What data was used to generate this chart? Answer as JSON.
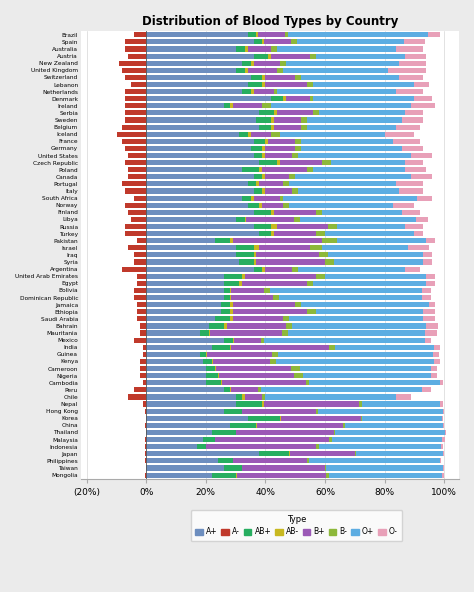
{
  "title": "Distribution of Blood Types by Country",
  "xlabel": "Type",
  "countries": [
    "Brazil",
    "Spain",
    "Australia",
    "Austria",
    "New Zealand",
    "United Kingdom",
    "Switzerland",
    "Lebanon",
    "Netherlands",
    "Denmark",
    "Ireland",
    "Serbia",
    "Sweden",
    "Belgium",
    "Iceland",
    "France",
    "Germany",
    "United States",
    "Czech Republic",
    "Poland",
    "Canada",
    "Portugal",
    "Italy",
    "South Africa",
    "Norway",
    "Finland",
    "Libya",
    "Russia",
    "Turkey",
    "Pakistan",
    "Israel",
    "Iraq",
    "Syria",
    "Argentina",
    "United Arab Emirates",
    "Egypt",
    "Bolivia",
    "Dominican Republic",
    "Jamaica",
    "Ethiopia",
    "Saudi Arabia",
    "Bahrain",
    "Mauritania",
    "Mexico",
    "India",
    "Guinea",
    "Kenya",
    "Cameroon",
    "Nigeria",
    "Cambodia",
    "Peru",
    "Chile",
    "Nepal",
    "Hong Kong",
    "Korea",
    "China",
    "Thailand",
    "Malaysia",
    "Indonesia",
    "Japan",
    "Philippines",
    "Taiwan",
    "Mongolia"
  ],
  "blood_types": [
    "A+",
    "A-",
    "AB+",
    "AB-",
    "B+",
    "B-",
    "O+",
    "O-"
  ],
  "colors": {
    "A+": "#6d8ebf",
    "A-": "#c0392b",
    "AB+": "#27ae60",
    "AB-": "#c8b820",
    "B+": "#9b59b6",
    "B-": "#8db83a",
    "O+": "#5dade2",
    "O-": "#e8a0b8"
  },
  "data": {
    "Brazil": {
      "A+": 34,
      "A-": 4,
      "AB+": 3,
      "AB-": 0.5,
      "B+": 9,
      "B-": 1,
      "O+": 47,
      "O-": 4
    },
    "Spain": {
      "A+": 36,
      "A-": 7,
      "AB+": 3,
      "AB-": 0.5,
      "B+": 9,
      "B-": 2,
      "O+": 36,
      "O-": 7
    },
    "Australia": {
      "A+": 30,
      "A-": 7,
      "AB+": 3,
      "AB-": 1,
      "B+": 8,
      "B-": 2,
      "O+": 40,
      "O-": 9
    },
    "Austria": {
      "A+": 36,
      "A-": 6,
      "AB+": 5,
      "AB-": 1,
      "B+": 13,
      "B-": 2,
      "O+": 30,
      "O-": 7
    },
    "New Zealand": {
      "A+": 32,
      "A-": 9,
      "AB+": 3,
      "AB-": 1,
      "B+": 9,
      "B-": 2,
      "O+": 38,
      "O-": 9
    },
    "United Kingdom": {
      "A+": 30,
      "A-": 8,
      "AB+": 3,
      "AB-": 1,
      "B+": 10,
      "B-": 2,
      "O+": 35,
      "O-": 13
    },
    "Switzerland": {
      "A+": 35,
      "A-": 7,
      "AB+": 4,
      "AB-": 1,
      "B+": 10,
      "B-": 2,
      "O+": 33,
      "O-": 8
    },
    "Lebanon": {
      "A+": 34,
      "A-": 5,
      "AB+": 5,
      "AB-": 1,
      "B+": 14,
      "B-": 2,
      "O+": 34,
      "O-": 5
    },
    "Netherlands": {
      "A+": 32,
      "A-": 7,
      "AB+": 3,
      "AB-": 1,
      "B+": 7,
      "B-": 1,
      "O+": 40,
      "O-": 9
    },
    "Denmark": {
      "A+": 42,
      "A-": 7,
      "AB+": 4,
      "AB-": 1,
      "B+": 8,
      "B-": 1,
      "O+": 34,
      "O-": 6
    },
    "Ireland": {
      "A+": 26,
      "A-": 7,
      "AB+": 2,
      "AB-": 1,
      "B+": 10,
      "B-": 3,
      "O+": 47,
      "O-": 8
    },
    "Serbia": {
      "A+": 38,
      "A-": 7,
      "AB+": 5,
      "AB-": 1,
      "B+": 12,
      "B-": 2,
      "O+": 29,
      "O-": 6
    },
    "Sweden": {
      "A+": 37,
      "A-": 7,
      "AB+": 5,
      "AB-": 1,
      "B+": 9,
      "B-": 2,
      "O+": 32,
      "O-": 7
    },
    "Belgium": {
      "A+": 38,
      "A-": 8,
      "AB+": 4,
      "AB-": 1,
      "B+": 9,
      "B-": 2,
      "O+": 30,
      "O-": 8
    },
    "Iceland": {
      "A+": 31,
      "A-": 10,
      "AB+": 3,
      "AB-": 1,
      "B+": 7,
      "B-": 3,
      "O+": 35,
      "O-": 10
    },
    "France": {
      "A+": 36,
      "A-": 8,
      "AB+": 4,
      "AB-": 1,
      "B+": 9,
      "B-": 2,
      "O+": 31,
      "O-": 9
    },
    "Germany": {
      "A+": 35,
      "A-": 7,
      "AB+": 4,
      "AB-": 1,
      "B+": 10,
      "B-": 2,
      "O+": 34,
      "O-": 7
    },
    "United States": {
      "A+": 36,
      "A-": 6,
      "AB+": 3,
      "AB-": 1,
      "B+": 9,
      "B-": 2,
      "O+": 38,
      "O-": 7
    },
    "Czech Republic": {
      "A+": 38,
      "A-": 7,
      "AB+": 6,
      "AB-": 1,
      "B+": 14,
      "B-": 3,
      "O+": 25,
      "O-": 6
    },
    "Poland": {
      "A+": 32,
      "A-": 6,
      "AB+": 6,
      "AB-": 1,
      "B+": 15,
      "B-": 2,
      "O+": 31,
      "O-": 7
    },
    "Canada": {
      "A+": 36,
      "A-": 6,
      "AB+": 3,
      "AB-": 1,
      "B+": 8,
      "B-": 2,
      "O+": 39,
      "O-": 7
    },
    "Portugal": {
      "A+": 34,
      "A-": 8,
      "AB+": 3,
      "AB-": 1,
      "B+": 8,
      "B-": 2,
      "O+": 36,
      "O-": 9
    },
    "Italy": {
      "A+": 36,
      "A-": 7,
      "AB+": 3,
      "AB-": 1,
      "B+": 9,
      "B-": 2,
      "O+": 34,
      "O-": 8
    },
    "South Africa": {
      "A+": 32,
      "A-": 4,
      "AB+": 3,
      "AB-": 1,
      "B+": 9,
      "B-": 1,
      "O+": 45,
      "O-": 5
    },
    "Norway": {
      "A+": 34,
      "A-": 7,
      "AB+": 4,
      "AB-": 1,
      "B+": 7,
      "B-": 2,
      "O+": 35,
      "O-": 7
    },
    "Finland": {
      "A+": 36,
      "A-": 6,
      "AB+": 6,
      "AB-": 1,
      "B+": 14,
      "B-": 2,
      "O+": 27,
      "O-": 6
    },
    "Libya": {
      "A+": 30,
      "A-": 5,
      "AB+": 3,
      "AB-": 0.5,
      "B+": 16,
      "B-": 2,
      "O+": 39,
      "O-": 4
    },
    "Russia": {
      "A+": 36,
      "A-": 7,
      "AB+": 6,
      "AB-": 2,
      "B+": 17,
      "B-": 3,
      "O+": 23,
      "O-": 6
    },
    "Turkey": {
      "A+": 38,
      "A-": 7,
      "AB+": 4,
      "AB-": 1,
      "B+": 14,
      "B-": 3,
      "O+": 30,
      "O-": 3
    },
    "Pakistan": {
      "A+": 23,
      "A-": 3,
      "AB+": 5,
      "AB-": 1,
      "B+": 30,
      "B-": 5,
      "O+": 30,
      "O-": 3
    },
    "Israel": {
      "A+": 30,
      "A-": 6,
      "AB+": 6,
      "AB-": 2,
      "B+": 17,
      "B-": 4,
      "O+": 29,
      "O-": 7
    },
    "Iraq": {
      "A+": 30,
      "A-": 4,
      "AB+": 6,
      "AB-": 1,
      "B+": 21,
      "B-": 3,
      "O+": 32,
      "O-": 3
    },
    "Syria": {
      "A+": 31,
      "A-": 4,
      "AB+": 5,
      "AB-": 1,
      "B+": 23,
      "B-": 3,
      "O+": 30,
      "O-": 3
    },
    "Argentina": {
      "A+": 36,
      "A-": 8,
      "AB+": 3,
      "AB-": 1,
      "B+": 9,
      "B-": 2,
      "O+": 36,
      "O-": 5
    },
    "United Arab Emirates": {
      "A+": 26,
      "A-": 3,
      "AB+": 6,
      "AB-": 1,
      "B+": 24,
      "B-": 3,
      "O+": 34,
      "O-": 3
    },
    "Egypt": {
      "A+": 26,
      "A-": 3,
      "AB+": 5,
      "AB-": 1,
      "B+": 22,
      "B-": 2,
      "O+": 38,
      "O-": 3
    },
    "Bolivia": {
      "A+": 26,
      "A-": 4,
      "AB+": 2,
      "AB-": 0.5,
      "B+": 11,
      "B-": 2,
      "O+": 51,
      "O-": 3
    },
    "Dominican Republic": {
      "A+": 26,
      "A-": 4,
      "AB+": 2,
      "AB-": 0.5,
      "B+": 14,
      "B-": 2,
      "O+": 48,
      "O-": 3
    },
    "Jamaica": {
      "A+": 25,
      "A-": 3,
      "AB+": 3,
      "AB-": 1,
      "B+": 21,
      "B-": 2,
      "O+": 43,
      "O-": 2
    },
    "Ethiopia": {
      "A+": 25,
      "A-": 3,
      "AB+": 3,
      "AB-": 1,
      "B+": 25,
      "B-": 3,
      "O+": 36,
      "O-": 4
    },
    "Saudi Arabia": {
      "A+": 23,
      "A-": 3,
      "AB+": 5,
      "AB-": 1,
      "B+": 17,
      "B-": 2,
      "O+": 45,
      "O-": 4
    },
    "Bahrain": {
      "A+": 21,
      "A-": 2,
      "AB+": 5,
      "AB-": 1,
      "B+": 20,
      "B-": 2,
      "O+": 45,
      "O-": 4
    },
    "Mauritania": {
      "A+": 18,
      "A-": 2,
      "AB+": 3,
      "AB-": 0.5,
      "B+": 24,
      "B-": 2,
      "O+": 46,
      "O-": 4
    },
    "Mexico": {
      "A+": 26,
      "A-": 4,
      "AB+": 3,
      "AB-": 0.5,
      "B+": 9,
      "B-": 1,
      "O+": 54,
      "O-": 2
    },
    "India": {
      "A+": 22,
      "A-": 1,
      "AB+": 6,
      "AB-": 0.5,
      "B+": 33,
      "B-": 2,
      "O+": 33,
      "O-": 2
    },
    "Guinea": {
      "A+": 18,
      "A-": 1,
      "AB+": 2,
      "AB-": 0.3,
      "B+": 22,
      "B-": 2,
      "O+": 52,
      "O-": 2
    },
    "Kenya": {
      "A+": 19,
      "A-": 2,
      "AB+": 3,
      "AB-": 0.5,
      "B+": 19,
      "B-": 2,
      "O+": 53,
      "O-": 2
    },
    "Cameroon": {
      "A+": 20,
      "A-": 2,
      "AB+": 3,
      "AB-": 0.5,
      "B+": 25,
      "B-": 3,
      "O+": 44,
      "O-": 2
    },
    "Nigeria": {
      "A+": 20,
      "A-": 2,
      "AB+": 4,
      "AB-": 0.5,
      "B+": 25,
      "B-": 3,
      "O+": 43,
      "O-": 2
    },
    "Cambodia": {
      "A+": 20,
      "A-": 1,
      "AB+": 5,
      "AB-": 0.5,
      "B+": 28,
      "B-": 1,
      "O+": 44,
      "O-": 1
    },
    "Peru": {
      "A+": 26,
      "A-": 4,
      "AB+": 2,
      "AB-": 0.5,
      "B+": 9,
      "B-": 1,
      "O+": 54,
      "O-": 3
    },
    "Chile": {
      "A+": 30,
      "A-": 6,
      "AB+": 2,
      "AB-": 1,
      "B+": 6,
      "B-": 1,
      "O+": 44,
      "O-": 5
    },
    "Nepal": {
      "A+": 30,
      "A-": 1,
      "AB+": 9,
      "AB-": 0.5,
      "B+": 32,
      "B-": 1,
      "O+": 26,
      "O-": 1
    },
    "Hong Kong": {
      "A+": 26,
      "A-": 0.3,
      "AB+": 6,
      "AB-": 0.1,
      "B+": 25,
      "B-": 0.5,
      "O+": 42,
      "O-": 0.5
    },
    "Korea": {
      "A+": 34,
      "A-": 0.2,
      "AB+": 11,
      "AB-": 0.1,
      "B+": 27,
      "B-": 0.3,
      "O+": 27,
      "O-": 0.3
    },
    "China": {
      "A+": 28,
      "A-": 0.3,
      "AB+": 9,
      "AB-": 0.1,
      "B+": 29,
      "B-": 0.5,
      "O+": 33,
      "O-": 0.5
    },
    "Thailand": {
      "A+": 22,
      "A-": 0.2,
      "AB+": 8,
      "AB-": 0.1,
      "B+": 33,
      "B-": 0.3,
      "O+": 37,
      "O-": 0.3
    },
    "Malaysia": {
      "A+": 19,
      "A-": 0.5,
      "AB+": 4,
      "AB-": 0.2,
      "B+": 38,
      "B-": 1,
      "O+": 37,
      "O-": 1
    },
    "Indonesia": {
      "A+": 17,
      "A-": 0.5,
      "AB+": 3,
      "AB-": 0.1,
      "B+": 37,
      "B-": 1,
      "O+": 41,
      "O-": 0.5
    },
    "Japan": {
      "A+": 38,
      "A-": 0.5,
      "AB+": 10,
      "AB-": 0.1,
      "B+": 22,
      "B-": 0.4,
      "O+": 29,
      "O-": 0.5
    },
    "Philippines": {
      "A+": 24,
      "A-": 0.5,
      "AB+": 5,
      "AB-": 0.1,
      "B+": 25,
      "B-": 0.5,
      "O+": 44,
      "O-": 0.5
    },
    "Taiwan": {
      "A+": 26,
      "A-": 0.2,
      "AB+": 6,
      "AB-": 0.1,
      "B+": 28,
      "B-": 0.4,
      "O+": 39,
      "O-": 0.3
    },
    "Mongolia": {
      "A+": 22,
      "A-": 0.5,
      "AB+": 8,
      "AB-": 0.3,
      "B+": 30,
      "B-": 1,
      "O+": 38,
      "O-": 0.5
    }
  },
  "xlim": [
    -22,
    105
  ],
  "xticks": [
    -20,
    0,
    20,
    40,
    60,
    80,
    100
  ],
  "xticklabels": [
    "(20%)",
    "0%",
    "20%",
    "40%",
    "60%",
    "80%",
    "100%"
  ],
  "bar_height": 0.72,
  "figsize": [
    4.74,
    5.92
  ],
  "dpi": 100,
  "bg_color": "#ebebeb",
  "plot_bg_color": "#ffffff"
}
